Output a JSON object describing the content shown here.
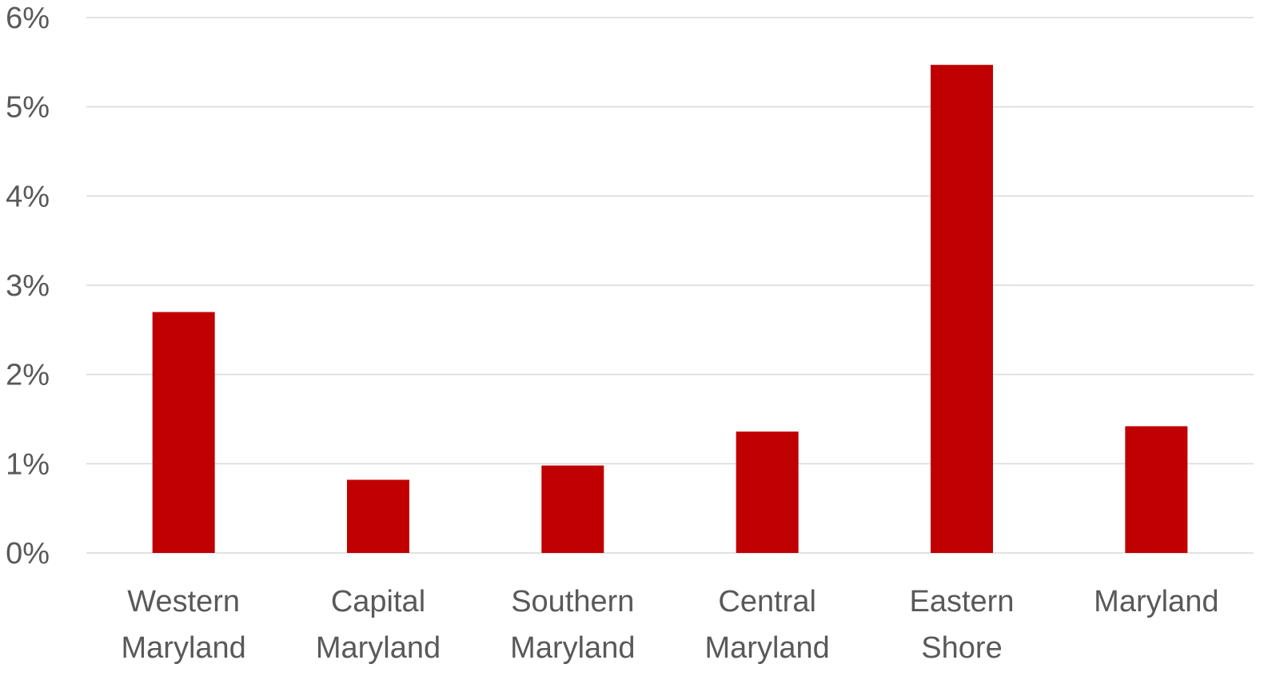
{
  "chart_data": {
    "type": "bar",
    "title": "",
    "xlabel": "",
    "ylabel": "",
    "categories": [
      [
        "Western",
        "Maryland"
      ],
      [
        "Capital",
        "Maryland"
      ],
      [
        "Southern",
        "Maryland"
      ],
      [
        "Central",
        "Maryland"
      ],
      [
        "Eastern",
        "Shore"
      ],
      [
        "Maryland"
      ]
    ],
    "values": [
      2.7,
      0.82,
      0.98,
      1.36,
      5.47,
      1.42
    ],
    "ylim": [
      0,
      6
    ],
    "yticks": [
      0,
      1,
      2,
      3,
      4,
      5,
      6
    ],
    "ytick_labels": [
      "0%",
      "1%",
      "2%",
      "3%",
      "4%",
      "5%",
      "6%"
    ],
    "grid": true,
    "legend": "none",
    "bar_color": "#c00000"
  }
}
